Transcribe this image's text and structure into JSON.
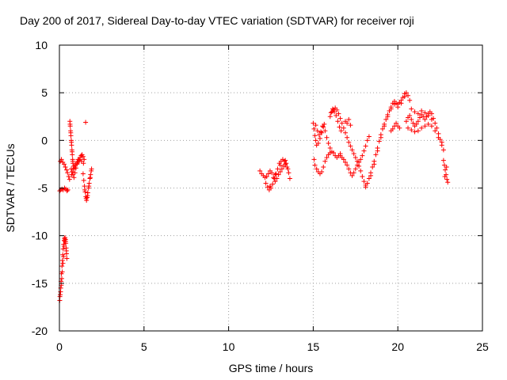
{
  "chart_data": {
    "type": "scatter",
    "title": "Day 200 of 2017, Sidereal Day-to-day VTEC variation (SDTVAR) for receiver roji",
    "xlabel": "GPS time / hours",
    "ylabel": "SDTVAR / TECUs",
    "xlim": [
      0,
      25
    ],
    "ylim": [
      -20,
      10
    ],
    "xticks": [
      0,
      5,
      10,
      15,
      20,
      25
    ],
    "yticks": [
      -20,
      -15,
      -10,
      -5,
      0,
      5,
      10
    ],
    "grid": true,
    "marker": "+",
    "color": "#ff0000",
    "series": [
      {
        "values": [
          [
            0.02,
            -16.8
          ],
          [
            0.05,
            -16.2
          ],
          [
            0.08,
            -15.5
          ],
          [
            0.1,
            -14.8
          ],
          [
            0.12,
            -14.0
          ],
          [
            0.15,
            -13.2
          ],
          [
            0.18,
            -12.6
          ],
          [
            0.2,
            -12.0
          ],
          [
            0.22,
            -11.4
          ],
          [
            0.25,
            -10.9
          ],
          [
            0.28,
            -10.5
          ],
          [
            0.3,
            -10.3
          ],
          [
            0.33,
            -10.2
          ],
          [
            0.36,
            -10.4
          ],
          [
            0.38,
            -10.8
          ],
          [
            0.4,
            -11.3
          ],
          [
            0.42,
            -11.9
          ],
          [
            0.44,
            -12.4
          ],
          [
            0.03,
            -16.4
          ],
          [
            0.07,
            -15.9
          ],
          [
            0.11,
            -15.2
          ],
          [
            0.14,
            -14.5
          ],
          [
            0.17,
            -13.8
          ],
          [
            0.21,
            -12.9
          ],
          [
            0.24,
            -12.2
          ],
          [
            0.27,
            -11.1
          ],
          [
            0.32,
            -10.6
          ],
          [
            0.37,
            -10.6
          ],
          [
            0.41,
            -11.6
          ],
          [
            0.02,
            -5.3
          ],
          [
            0.08,
            -5.2
          ],
          [
            0.15,
            -5.1
          ],
          [
            0.22,
            -5.2
          ],
          [
            0.3,
            -5.0
          ],
          [
            0.38,
            -5.1
          ],
          [
            0.45,
            -5.3
          ],
          [
            0.5,
            -5.2
          ],
          [
            0.05,
            -2.2
          ],
          [
            0.12,
            -2.0
          ],
          [
            0.2,
            -2.3
          ],
          [
            0.28,
            -2.5
          ],
          [
            0.35,
            -2.8
          ],
          [
            0.42,
            -3.1
          ],
          [
            0.48,
            -3.4
          ],
          [
            0.55,
            -3.8
          ],
          [
            0.6,
            -4.1
          ],
          [
            0.62,
            2.0
          ],
          [
            0.64,
            1.5
          ],
          [
            0.66,
            1.0
          ],
          [
            0.68,
            0.5
          ],
          [
            0.7,
            0.0
          ],
          [
            0.72,
            -0.5
          ],
          [
            0.74,
            -1.0
          ],
          [
            0.76,
            -1.5
          ],
          [
            0.78,
            -2.0
          ],
          [
            0.8,
            -2.4
          ],
          [
            0.85,
            -2.7
          ],
          [
            0.9,
            -2.9
          ],
          [
            0.63,
            1.7
          ],
          [
            0.67,
            0.8
          ],
          [
            0.71,
            -0.2
          ],
          [
            0.75,
            -1.2
          ],
          [
            0.79,
            -2.2
          ],
          [
            0.7,
            -3.0
          ],
          [
            0.75,
            -3.3
          ],
          [
            0.8,
            -3.6
          ],
          [
            0.86,
            -3.9
          ],
          [
            0.92,
            -3.4
          ],
          [
            0.98,
            -2.9
          ],
          [
            1.04,
            -2.5
          ],
          [
            1.1,
            -2.2
          ],
          [
            1.16,
            -2.0
          ],
          [
            1.22,
            -1.8
          ],
          [
            1.28,
            -1.6
          ],
          [
            1.34,
            -1.5
          ],
          [
            1.4,
            -1.7
          ],
          [
            1.46,
            -2.0
          ],
          [
            0.72,
            -3.6
          ],
          [
            0.82,
            -3.0
          ],
          [
            0.94,
            -2.6
          ],
          [
            1.06,
            -2.3
          ],
          [
            1.18,
            -2.1
          ],
          [
            1.3,
            -2.2
          ],
          [
            1.42,
            -2.4
          ],
          [
            1.05,
            -2.4
          ],
          [
            1.1,
            -2.0
          ],
          [
            1.4,
            -3.5
          ],
          [
            1.44,
            -4.2
          ],
          [
            1.48,
            -4.8
          ],
          [
            1.52,
            -5.4
          ],
          [
            1.56,
            -5.9
          ],
          [
            1.6,
            -6.3
          ],
          [
            1.64,
            -6.0
          ],
          [
            1.68,
            -5.5
          ],
          [
            1.72,
            -5.0
          ],
          [
            1.76,
            -4.5
          ],
          [
            1.8,
            -4.0
          ],
          [
            1.84,
            -3.6
          ],
          [
            1.88,
            -3.2
          ],
          [
            1.9,
            -3.0
          ],
          [
            1.5,
            -5.2
          ],
          [
            1.58,
            -6.1
          ],
          [
            1.66,
            -5.8
          ],
          [
            1.74,
            -4.8
          ],
          [
            1.82,
            -3.9
          ],
          [
            1.55,
            1.9
          ],
          [
            11.85,
            -3.2
          ],
          [
            11.95,
            -3.5
          ],
          [
            12.05,
            -3.7
          ],
          [
            12.15,
            -3.9
          ],
          [
            12.25,
            -3.8
          ],
          [
            12.35,
            -3.5
          ],
          [
            12.45,
            -3.2
          ],
          [
            12.55,
            -3.4
          ],
          [
            12.65,
            -3.9
          ],
          [
            12.75,
            -4.3
          ],
          [
            12.85,
            -4.0
          ],
          [
            12.95,
            -3.6
          ],
          [
            13.05,
            -3.3
          ],
          [
            13.15,
            -3.0
          ],
          [
            13.25,
            -2.7
          ],
          [
            13.35,
            -2.5
          ],
          [
            13.45,
            -2.8
          ],
          [
            13.55,
            -3.4
          ],
          [
            13.62,
            -4.0
          ],
          [
            12.2,
            -4.5
          ],
          [
            12.3,
            -4.9
          ],
          [
            12.4,
            -5.2
          ],
          [
            12.5,
            -5.0
          ],
          [
            12.6,
            -4.6
          ],
          [
            12.7,
            -4.0
          ],
          [
            12.8,
            -3.5
          ],
          [
            12.9,
            -3.0
          ],
          [
            13.0,
            -2.4
          ],
          [
            13.1,
            -2.2
          ],
          [
            13.2,
            -2.0
          ],
          [
            13.3,
            -2.2
          ],
          [
            13.4,
            -2.4
          ],
          [
            13.5,
            -3.0
          ],
          [
            12.45,
            -4.8
          ],
          [
            12.75,
            -3.6
          ],
          [
            13.05,
            -2.6
          ],
          [
            13.35,
            -2.1
          ],
          [
            15.0,
            1.8
          ],
          [
            15.05,
            1.2
          ],
          [
            15.1,
            0.5
          ],
          [
            15.15,
            0.0
          ],
          [
            15.2,
            -0.5
          ],
          [
            15.3,
            -0.3
          ],
          [
            15.4,
            0.2
          ],
          [
            15.5,
            0.8
          ],
          [
            15.6,
            1.4
          ],
          [
            15.7,
            1.0
          ],
          [
            15.8,
            0.3
          ],
          [
            15.9,
            -0.3
          ],
          [
            16.0,
            -0.8
          ],
          [
            15.05,
            -2.0
          ],
          [
            15.1,
            -2.6
          ],
          [
            15.2,
            -3.0
          ],
          [
            15.3,
            -3.3
          ],
          [
            15.4,
            -3.5
          ],
          [
            15.5,
            -3.3
          ],
          [
            15.6,
            -2.8
          ],
          [
            15.7,
            -2.2
          ],
          [
            15.8,
            -1.8
          ],
          [
            15.9,
            -1.5
          ],
          [
            16.0,
            -1.3
          ],
          [
            16.1,
            -1.2
          ],
          [
            16.2,
            -1.3
          ],
          [
            16.3,
            -1.6
          ],
          [
            16.4,
            -1.8
          ],
          [
            16.5,
            -1.6
          ],
          [
            16.6,
            -1.4
          ],
          [
            15.15,
            1.6
          ],
          [
            15.25,
            1.0
          ],
          [
            15.35,
            0.6
          ],
          [
            15.45,
            0.9
          ],
          [
            15.55,
            1.5
          ],
          [
            15.65,
            1.7
          ],
          [
            16.0,
            2.5
          ],
          [
            16.1,
            3.0
          ],
          [
            16.2,
            3.2
          ],
          [
            16.3,
            3.4
          ],
          [
            16.4,
            3.2
          ],
          [
            16.5,
            2.8
          ],
          [
            16.6,
            2.3
          ],
          [
            16.7,
            1.8
          ],
          [
            16.8,
            1.3
          ],
          [
            16.9,
            0.8
          ],
          [
            17.0,
            0.3
          ],
          [
            17.1,
            -0.2
          ],
          [
            17.2,
            -0.6
          ],
          [
            17.3,
            -1.0
          ],
          [
            17.4,
            -1.4
          ],
          [
            17.5,
            -1.8
          ],
          [
            17.6,
            -2.2
          ],
          [
            17.7,
            -2.7
          ],
          [
            17.8,
            -3.2
          ],
          [
            17.9,
            -3.8
          ],
          [
            18.0,
            -4.3
          ],
          [
            18.1,
            -4.7
          ],
          [
            16.05,
            2.9
          ],
          [
            16.15,
            3.3
          ],
          [
            16.25,
            3.0
          ],
          [
            16.35,
            2.6
          ],
          [
            16.45,
            2.0
          ],
          [
            16.55,
            1.4
          ],
          [
            16.65,
            1.0
          ],
          [
            16.6,
            -1.6
          ],
          [
            16.7,
            -1.8
          ],
          [
            16.8,
            -2.0
          ],
          [
            16.9,
            -2.3
          ],
          [
            17.0,
            -2.6
          ],
          [
            17.1,
            -3.0
          ],
          [
            17.2,
            -3.4
          ],
          [
            17.3,
            -3.7
          ],
          [
            17.4,
            -3.4
          ],
          [
            17.5,
            -3.0
          ],
          [
            17.6,
            -2.6
          ],
          [
            17.7,
            -2.3
          ],
          [
            17.8,
            -2.0
          ],
          [
            17.9,
            -1.6
          ],
          [
            18.0,
            -1.1
          ],
          [
            18.1,
            -0.6
          ],
          [
            18.2,
            0.0
          ],
          [
            18.3,
            0.4
          ],
          [
            16.9,
            2.0
          ],
          [
            17.0,
            1.8
          ],
          [
            17.1,
            2.2
          ],
          [
            17.2,
            1.6
          ],
          [
            18.1,
            -4.9
          ],
          [
            18.2,
            -4.5
          ],
          [
            18.3,
            -4.0
          ],
          [
            18.4,
            -3.4
          ],
          [
            18.5,
            -2.8
          ],
          [
            18.6,
            -2.2
          ],
          [
            18.7,
            -1.5
          ],
          [
            18.8,
            -0.8
          ],
          [
            18.9,
            -0.1
          ],
          [
            19.0,
            0.6
          ],
          [
            19.1,
            1.2
          ],
          [
            19.2,
            1.7
          ],
          [
            19.3,
            2.2
          ],
          [
            19.4,
            2.7
          ],
          [
            19.5,
            3.1
          ],
          [
            19.6,
            3.5
          ],
          [
            19.7,
            3.9
          ],
          [
            19.8,
            4.1
          ],
          [
            19.9,
            3.9
          ],
          [
            20.0,
            3.8
          ],
          [
            20.1,
            4.0
          ],
          [
            20.2,
            4.2
          ],
          [
            20.3,
            4.5
          ],
          [
            20.4,
            4.9
          ],
          [
            20.5,
            5.0
          ],
          [
            20.6,
            4.7
          ],
          [
            20.7,
            4.2
          ],
          [
            18.4,
            -3.7
          ],
          [
            18.6,
            -2.5
          ],
          [
            18.8,
            -1.1
          ],
          [
            19.0,
            0.3
          ],
          [
            19.2,
            1.5
          ],
          [
            19.4,
            2.5
          ],
          [
            19.6,
            3.3
          ],
          [
            19.8,
            3.8
          ],
          [
            20.0,
            3.5
          ],
          [
            20.2,
            3.9
          ],
          [
            20.4,
            4.6
          ],
          [
            19.6,
            1.0
          ],
          [
            19.7,
            1.2
          ],
          [
            19.8,
            1.5
          ],
          [
            19.9,
            1.8
          ],
          [
            20.0,
            1.5
          ],
          [
            20.1,
            1.3
          ],
          [
            20.5,
            2.0
          ],
          [
            20.6,
            2.4
          ],
          [
            20.7,
            2.6
          ],
          [
            20.8,
            2.2
          ],
          [
            20.9,
            1.8
          ],
          [
            21.0,
            1.5
          ],
          [
            21.1,
            1.7
          ],
          [
            21.2,
            2.0
          ],
          [
            21.3,
            2.4
          ],
          [
            21.4,
            2.7
          ],
          [
            21.5,
            2.5
          ],
          [
            21.6,
            2.2
          ],
          [
            21.7,
            2.5
          ],
          [
            21.8,
            2.8
          ],
          [
            21.9,
            3.0
          ],
          [
            22.0,
            2.8
          ],
          [
            22.1,
            2.3
          ],
          [
            22.2,
            1.8
          ],
          [
            22.3,
            1.3
          ],
          [
            22.4,
            0.7
          ],
          [
            22.5,
            0.1
          ],
          [
            22.6,
            -0.5
          ],
          [
            22.7,
            -1.0
          ],
          [
            20.6,
            1.3
          ],
          [
            20.8,
            1.1
          ],
          [
            21.0,
            0.9
          ],
          [
            21.2,
            1.0
          ],
          [
            21.4,
            1.3
          ],
          [
            21.6,
            1.5
          ],
          [
            21.8,
            1.7
          ],
          [
            22.0,
            1.5
          ],
          [
            22.2,
            1.0
          ],
          [
            22.4,
            0.3
          ],
          [
            22.6,
            -0.2
          ],
          [
            20.8,
            3.3
          ],
          [
            21.0,
            3.0
          ],
          [
            21.2,
            2.8
          ],
          [
            21.4,
            3.1
          ],
          [
            21.6,
            2.9
          ],
          [
            21.8,
            2.6
          ],
          [
            22.0,
            2.2
          ],
          [
            22.7,
            -2.1
          ],
          [
            22.75,
            -2.6
          ],
          [
            22.8,
            -3.1
          ],
          [
            22.85,
            -3.6
          ],
          [
            22.9,
            -4.1
          ],
          [
            22.95,
            -4.4
          ],
          [
            22.78,
            -3.8
          ],
          [
            22.88,
            -2.8
          ]
        ]
      }
    ]
  }
}
